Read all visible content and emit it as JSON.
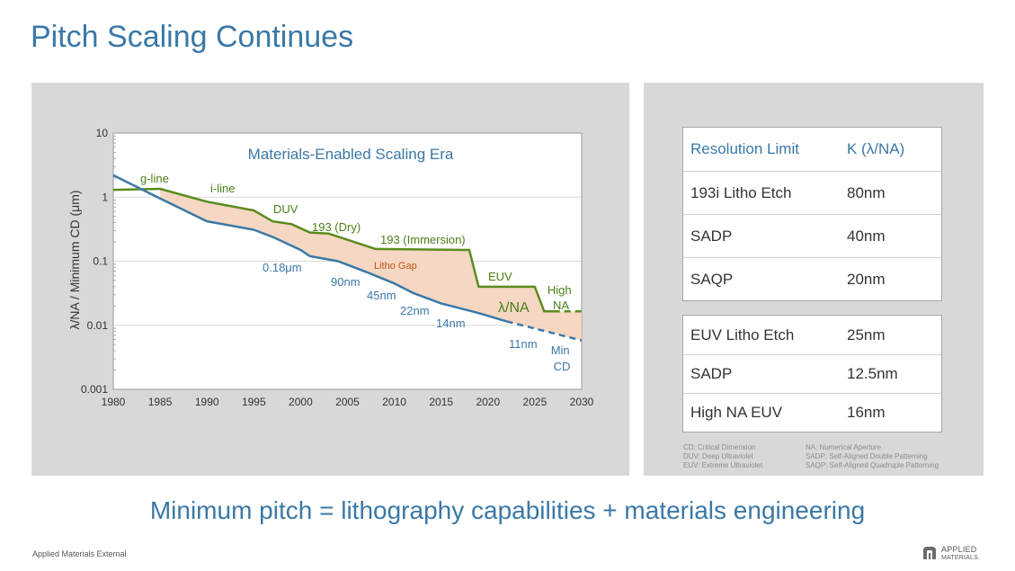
{
  "title": "Pitch Scaling Continues",
  "chart_data": {
    "type": "line",
    "title": "Materials-Enabled Scaling Era",
    "ylabel": "λ/NA / Minimum CD (μm)",
    "xlabel": "",
    "y_scale": "log",
    "xlim": [
      1980,
      2030
    ],
    "ylim": [
      0.001,
      10
    ],
    "x_ticks": [
      1980,
      1985,
      1990,
      1995,
      2000,
      2005,
      2010,
      2015,
      2020,
      2025,
      2030
    ],
    "y_ticks": [
      {
        "value": 0.001,
        "label": "0.001"
      },
      {
        "value": 0.01,
        "label": "0.01"
      },
      {
        "value": 0.1,
        "label": "0.1"
      },
      {
        "value": 1,
        "label": "1"
      },
      {
        "value": 10,
        "label": "10"
      }
    ],
    "grid": "horizontal",
    "series": [
      {
        "name": "λ/NA",
        "color": "#5a8c1e",
        "points": [
          [
            1980,
            1.3
          ],
          [
            1985,
            1.35
          ],
          [
            1990,
            0.85
          ],
          [
            1995,
            0.62
          ],
          [
            1997,
            0.42
          ],
          [
            1999,
            0.38
          ],
          [
            2001,
            0.28
          ],
          [
            2003,
            0.27
          ],
          [
            2008,
            0.155
          ],
          [
            2018,
            0.15
          ],
          [
            2019,
            0.04
          ],
          [
            2025,
            0.04
          ],
          [
            2026,
            0.0165
          ],
          [
            2027,
            0.0165
          ]
        ],
        "projection": [
          [
            2027,
            0.0165
          ],
          [
            2030,
            0.0165
          ]
        ]
      },
      {
        "name": "Min CD",
        "color": "#3a78a6",
        "points": [
          [
            1980,
            2.2
          ],
          [
            1985,
            0.95
          ],
          [
            1990,
            0.42
          ],
          [
            1995,
            0.31
          ],
          [
            1997,
            0.24
          ],
          [
            2000,
            0.15
          ],
          [
            2001,
            0.12
          ],
          [
            2004,
            0.1
          ],
          [
            2007,
            0.068
          ],
          [
            2010,
            0.045
          ],
          [
            2012,
            0.032
          ],
          [
            2015,
            0.022
          ],
          [
            2019,
            0.0155
          ],
          [
            2022,
            0.0115
          ]
        ],
        "projection": [
          [
            2022,
            0.0115
          ],
          [
            2030,
            0.0058
          ]
        ]
      }
    ],
    "region_label": "Litho Gap",
    "annotations": [
      "g-line",
      "i-line",
      "DUV",
      "193 (Dry)",
      "193 (Immersion)",
      "EUV",
      "High NA",
      "0.18μm",
      "90nm",
      "45nm",
      "22nm",
      "14nm",
      "11nm",
      "λ/NA",
      "Min CD"
    ]
  },
  "table_top": {
    "header": [
      "Resolution  Limit",
      "K (λ/NA)"
    ],
    "rows": [
      [
        "193i Litho Etch",
        "80nm"
      ],
      [
        "SADP",
        "40nm"
      ],
      [
        "SAQP",
        "20nm"
      ]
    ]
  },
  "table_bottom": {
    "rows": [
      [
        "EUV Litho Etch",
        "25nm"
      ],
      [
        "SADP",
        "12.5nm"
      ],
      [
        "High NA EUV",
        "16nm"
      ]
    ]
  },
  "glossary": {
    "left": [
      "CD: Critical Dimension",
      "DUV: Deep Ultraviolet",
      "EUV: Extreme Ultraviolet"
    ],
    "right": [
      "NA: Numerical Aperture",
      "SADP: Self-Aligned Double Patterning",
      "SAQP: Self-Aligned Quadruple Patterning"
    ]
  },
  "bottom_statement": "Minimum pitch = lithography capabilities + materials engineering",
  "footer_label": "Applied Materials External",
  "brand": {
    "line1": "APPLIED",
    "line2": "MATERIALS."
  },
  "colors": {
    "accent_blue": "#3a78a6",
    "accent_green": "#5a8c1e",
    "gap_fill": "#f5d3bd",
    "gap_label": "#c0501a"
  }
}
